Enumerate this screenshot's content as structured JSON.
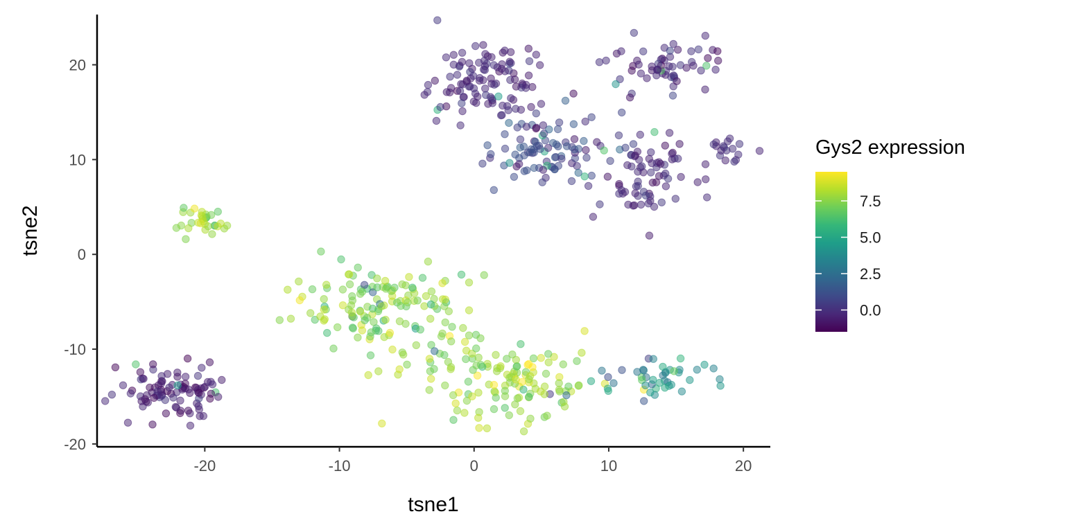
{
  "chart_data": {
    "type": "scatter",
    "title": "",
    "xlabel": "tsne1",
    "ylabel": "tsne2",
    "xlim": [
      -28,
      22
    ],
    "ylim": [
      -20.3,
      25.3
    ],
    "x_ticks": [
      -20,
      -10,
      0,
      10,
      20
    ],
    "y_ticks": [
      -20,
      -10,
      0,
      10,
      20
    ],
    "grid": false,
    "color_scale": {
      "name": "viridis",
      "title": "Gys2 expression",
      "range": [
        -1.5,
        9.5
      ],
      "ticks": [
        0.0,
        2.5,
        5.0,
        7.5
      ],
      "tick_labels": [
        "0.0",
        "2.5",
        "5.0",
        "7.5"
      ],
      "colors": [
        "#440154",
        "#482878",
        "#3e4a89",
        "#31688e",
        "#26828e",
        "#1f9e89",
        "#35b779",
        "#6ece58",
        "#b5de2b",
        "#fde725"
      ]
    },
    "point_opacity": 0.5,
    "clusters": [
      {
        "cx": 1,
        "cy": 18.5,
        "sx": 2.3,
        "sy": 2.1,
        "n": 110,
        "expr_mean": -0.3,
        "expr_sd": 0.4,
        "outlier_frac": 0.03
      },
      {
        "cx": 14.3,
        "cy": 19.8,
        "sx": 2.1,
        "sy": 1.4,
        "n": 60,
        "expr_mean": -0.2,
        "expr_sd": 0.4,
        "outlier_frac": 0.04
      },
      {
        "cx": 6,
        "cy": 11,
        "sx": 2.3,
        "sy": 2.0,
        "n": 95,
        "expr_mean": 0.6,
        "expr_sd": 0.7,
        "outlier_frac": 0.04
      },
      {
        "cx": 13,
        "cy": 8.3,
        "sx": 2.0,
        "sy": 2.3,
        "n": 75,
        "expr_mean": -0.3,
        "expr_sd": 0.4,
        "outlier_frac": 0.04
      },
      {
        "cx": 18.8,
        "cy": 11.0,
        "sx": 0.8,
        "sy": 0.6,
        "n": 16,
        "expr_mean": 0.0,
        "expr_sd": 0.3,
        "outlier_frac": 0.0
      },
      {
        "cx": -20.1,
        "cy": 3.4,
        "sx": 0.8,
        "sy": 0.7,
        "n": 32,
        "expr_mean": 7.7,
        "expr_sd": 0.5,
        "outlier_frac": 0.0
      },
      {
        "cx": -22.5,
        "cy": -14.5,
        "sx": 2.0,
        "sy": 1.4,
        "n": 95,
        "expr_mean": -0.6,
        "expr_sd": 0.5,
        "outlier_frac": 0.03
      },
      {
        "cx": -6.5,
        "cy": -5.5,
        "sx": 3.5,
        "sy": 2.6,
        "n": 150,
        "expr_mean": 7.5,
        "expr_sd": 0.9,
        "outlier_frac": 0.04
      },
      {
        "cx": 2.8,
        "cy": -13.2,
        "sx": 3.0,
        "sy": 2.2,
        "n": 130,
        "expr_mean": 7.8,
        "expr_sd": 0.9,
        "outlier_frac": 0.05
      },
      {
        "cx": 13.5,
        "cy": -13.0,
        "sx": 1.8,
        "sy": 1.2,
        "n": 45,
        "expr_mean": 4.3,
        "expr_sd": 1.3,
        "outlier_frac": 0.05
      }
    ]
  }
}
